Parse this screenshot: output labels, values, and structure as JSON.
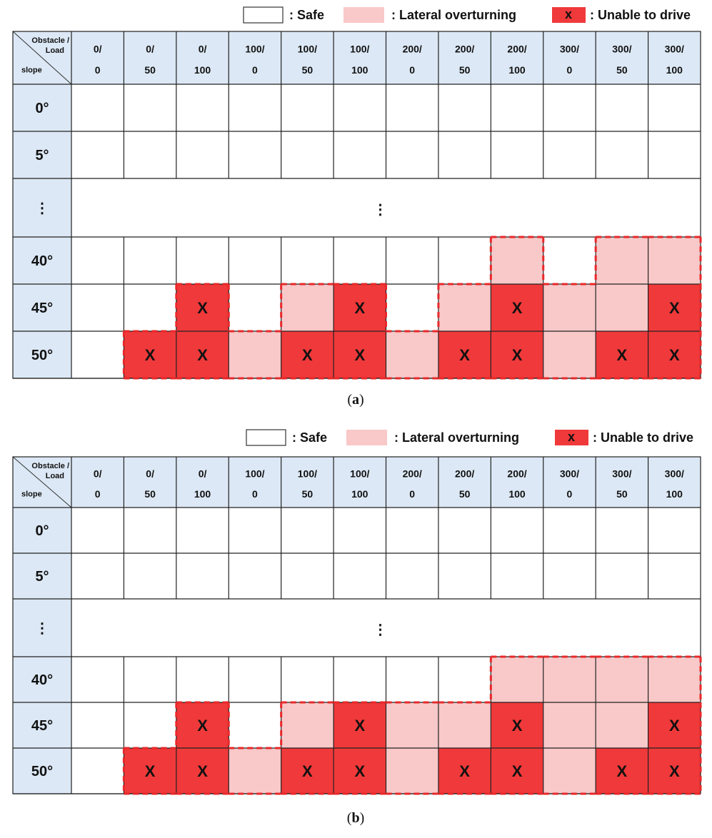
{
  "legend": {
    "safe_label": ": Safe",
    "lateral_label": ": Lateral overturning",
    "unable_label": ": Unable to drive",
    "unable_marker": "x"
  },
  "corner": {
    "line1": "Obstacle /",
    "line2": "Load",
    "line3": "slope"
  },
  "colors": {
    "safe": "#ffffff",
    "lateral": "#f9c8c8",
    "unable": "#f0393a",
    "header_bg": "#dce8f5",
    "grid": "#222222",
    "dash": "#e8282a"
  },
  "ellipsis_glyph": "⋮",
  "cell_mark": "X",
  "chart_data": [
    {
      "type": "table",
      "caption": "(a)",
      "caption_prefix": "(",
      "caption_letter": "a",
      "caption_suffix": ")",
      "columns": [
        {
          "obstacle": "0/",
          "load": "0"
        },
        {
          "obstacle": "0/",
          "load": "50"
        },
        {
          "obstacle": "0/",
          "load": "100"
        },
        {
          "obstacle": "100/",
          "load": "0"
        },
        {
          "obstacle": "100/",
          "load": "50"
        },
        {
          "obstacle": "100/",
          "load": "100"
        },
        {
          "obstacle": "200/",
          "load": "0"
        },
        {
          "obstacle": "200/",
          "load": "50"
        },
        {
          "obstacle": "200/",
          "load": "100"
        },
        {
          "obstacle": "300/",
          "load": "0"
        },
        {
          "obstacle": "300/",
          "load": "50"
        },
        {
          "obstacle": "300/",
          "load": "100"
        }
      ],
      "rows": [
        {
          "slope": "0°",
          "cells": [
            "S",
            "S",
            "S",
            "S",
            "S",
            "S",
            "S",
            "S",
            "S",
            "S",
            "S",
            "S"
          ]
        },
        {
          "slope": "5°",
          "cells": [
            "S",
            "S",
            "S",
            "S",
            "S",
            "S",
            "S",
            "S",
            "S",
            "S",
            "S",
            "S"
          ]
        },
        {
          "slope": "⋮",
          "ellipsis": true
        },
        {
          "slope": "40°",
          "cells": [
            "S",
            "S",
            "S",
            "S",
            "S",
            "S",
            "S",
            "S",
            "L",
            "S",
            "L",
            "L"
          ]
        },
        {
          "slope": "45°",
          "cells": [
            "S",
            "S",
            "X",
            "S",
            "L",
            "X",
            "S",
            "L",
            "X",
            "L",
            "L",
            "X"
          ]
        },
        {
          "slope": "50°",
          "cells": [
            "S",
            "X",
            "X",
            "L",
            "X",
            "X",
            "L",
            "X",
            "X",
            "L",
            "X",
            "X"
          ]
        }
      ]
    },
    {
      "type": "table",
      "caption": "(b)",
      "caption_prefix": "(",
      "caption_letter": "b",
      "caption_suffix": ")",
      "columns": [
        {
          "obstacle": "0/",
          "load": "0"
        },
        {
          "obstacle": "0/",
          "load": "50"
        },
        {
          "obstacle": "0/",
          "load": "100"
        },
        {
          "obstacle": "100/",
          "load": "0"
        },
        {
          "obstacle": "100/",
          "load": "50"
        },
        {
          "obstacle": "100/",
          "load": "100"
        },
        {
          "obstacle": "200/",
          "load": "0"
        },
        {
          "obstacle": "200/",
          "load": "50"
        },
        {
          "obstacle": "200/",
          "load": "100"
        },
        {
          "obstacle": "300/",
          "load": "0"
        },
        {
          "obstacle": "300/",
          "load": "50"
        },
        {
          "obstacle": "300/",
          "load": "100"
        }
      ],
      "rows": [
        {
          "slope": "0°",
          "cells": [
            "S",
            "S",
            "S",
            "S",
            "S",
            "S",
            "S",
            "S",
            "S",
            "S",
            "S",
            "S"
          ]
        },
        {
          "slope": "5°",
          "cells": [
            "S",
            "S",
            "S",
            "S",
            "S",
            "S",
            "S",
            "S",
            "S",
            "S",
            "S",
            "S"
          ]
        },
        {
          "slope": "⋮",
          "ellipsis": true
        },
        {
          "slope": "40°",
          "cells": [
            "S",
            "S",
            "S",
            "S",
            "S",
            "S",
            "S",
            "S",
            "L",
            "L",
            "L",
            "L"
          ]
        },
        {
          "slope": "45°",
          "cells": [
            "S",
            "S",
            "X",
            "S",
            "L",
            "X",
            "L",
            "L",
            "X",
            "L",
            "L",
            "X"
          ]
        },
        {
          "slope": "50°",
          "cells": [
            "S",
            "X",
            "X",
            "L",
            "X",
            "X",
            "L",
            "X",
            "X",
            "L",
            "X",
            "X"
          ]
        }
      ]
    }
  ]
}
